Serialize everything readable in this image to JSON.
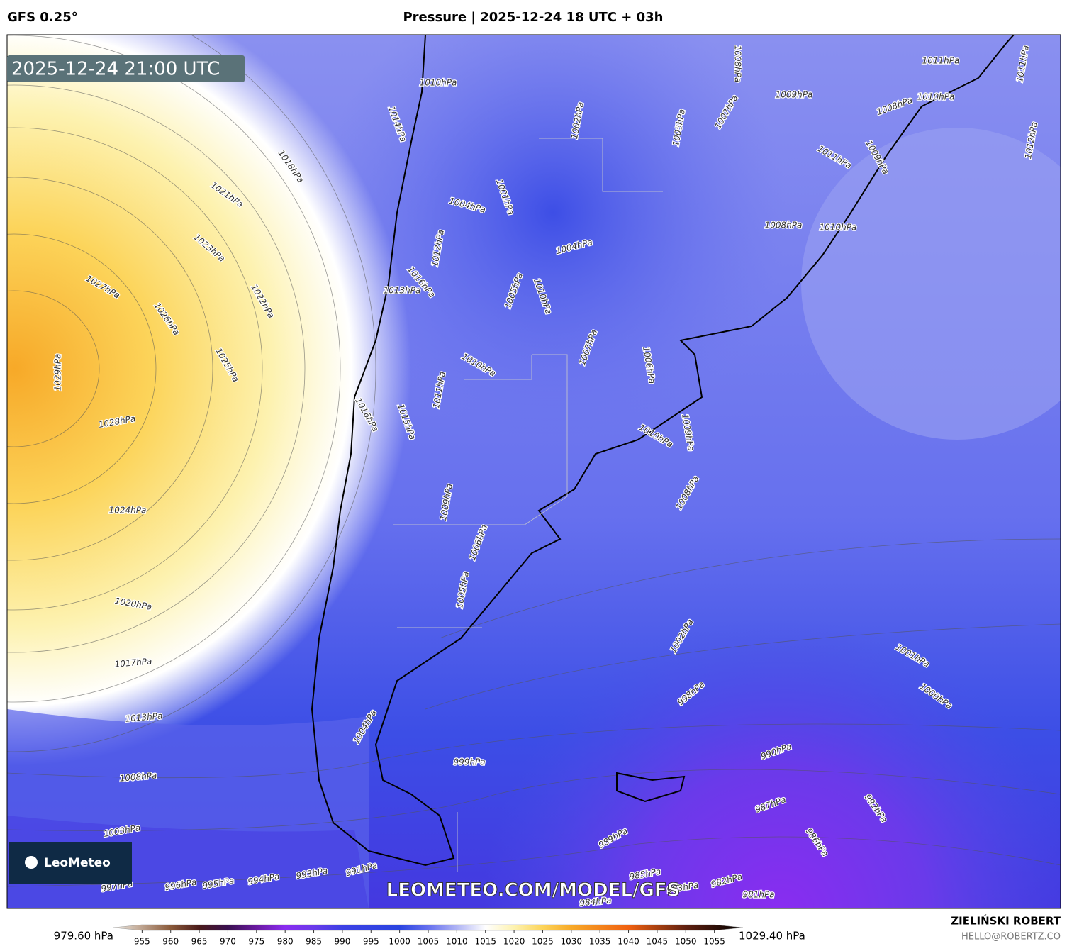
{
  "header": {
    "model": "GFS 0.25°",
    "title": "Pressure | 2025-12-24 18 UTC + 03h"
  },
  "timestamp": "2025-12-24 21:00 UTC",
  "logo": "LeoMeteo",
  "watermark": "LEOMETEO.COM/MODEL/GFS",
  "contour_labels": [
    "1014hPa",
    "1018hPa",
    "1021hPa",
    "1023hPa",
    "1027hPa",
    "1026hPa",
    "1022hPa",
    "1025hPa",
    "1029hPa",
    "1028hPa",
    "1024hPa",
    "1020hPa",
    "1017hPa",
    "1013hPa",
    "1008hPa",
    "1003hPa",
    "997hPa",
    "996hPa",
    "995hPa",
    "994hPa",
    "993hPa",
    "991hPa",
    "1010hPa",
    "1009hPa",
    "1008hPa",
    "1011hPa",
    "1012hPa",
    "1008hPa",
    "1010hPa",
    "1004hPa",
    "1004hPa",
    "1007hPa",
    "1006hPa",
    "1010hPa",
    "1010hPa",
    "1009hPa",
    "1008hPa",
    "1009hPa",
    "1006hPa",
    "1005hPa",
    "1002hPa",
    "998hPa",
    "1001hPa",
    "1000hPa",
    "999hPa",
    "990hPa",
    "992hPa",
    "987hPa",
    "986hPa",
    "989hPa",
    "985hPa",
    "984hPa",
    "983hPa",
    "982hPa",
    "981hPa",
    "1016hPa",
    "1015hPa",
    "1011hPa",
    "1013hPa",
    "1016hPa",
    "1004hPa",
    "1002hPa",
    "1005hPa",
    "1007hPa",
    "1011hPa",
    "1008hPa",
    "1010hPa",
    "1009hPa",
    "1011hPa",
    "1010hPa",
    "1005hPa",
    "1012hPa",
    "1001hPa"
  ],
  "colorbar": {
    "min_label": "979.60 hPa",
    "max_label": "1029.40 hPa",
    "lim": [
      950,
      1060
    ],
    "ticks": [
      955,
      960,
      965,
      970,
      975,
      980,
      985,
      990,
      995,
      1000,
      1005,
      1010,
      1015,
      1020,
      1025,
      1030,
      1035,
      1040,
      1045,
      1050,
      1055
    ]
  },
  "credits": {
    "author": "ZIELIŃSKI ROBERT",
    "email": "HELLO@ROBERTZ.CO"
  }
}
